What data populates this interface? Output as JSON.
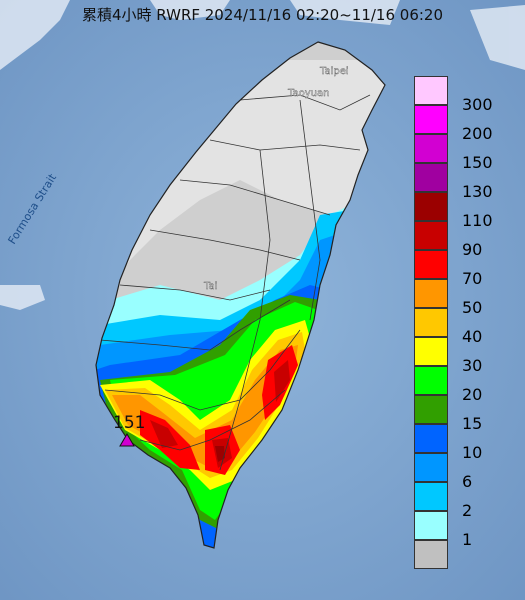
{
  "title": "累積4小時 RWRF 2024/11/16 02:20~11/16 06:20",
  "labels": {
    "strait": "Formosa Strait",
    "taipei": "Taipei",
    "taoyuan": "Taoyuan",
    "taichung": "Tai",
    "marker_value": "151"
  },
  "legend": [
    {
      "label": "300",
      "color": "#ffc8ff"
    },
    {
      "label": "200",
      "color": "#ff00ff"
    },
    {
      "label": "150",
      "color": "#d200d2"
    },
    {
      "label": "130",
      "color": "#a000a0"
    },
    {
      "label": "110",
      "color": "#9b0000"
    },
    {
      "label": "90",
      "color": "#c80000"
    },
    {
      "label": "70",
      "color": "#ff0000"
    },
    {
      "label": "50",
      "color": "#ff9600"
    },
    {
      "label": "40",
      "color": "#ffc800"
    },
    {
      "label": "30",
      "color": "#ffff00"
    },
    {
      "label": "20",
      "color": "#00ff00"
    },
    {
      "label": "15",
      "color": "#319f00"
    },
    {
      "label": "10",
      "color": "#0064ff"
    },
    {
      "label": "6",
      "color": "#0096ff"
    },
    {
      "label": "2",
      "color": "#00c8ff"
    },
    {
      "label": "1",
      "color": "#99ffff"
    },
    {
      "label": "",
      "color": "#c0c0c0"
    }
  ]
}
